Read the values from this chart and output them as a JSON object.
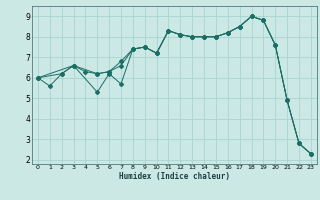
{
  "xlabel": "Humidex (Indice chaleur)",
  "bg_color": "#cce8e5",
  "grid_color": "#a8d4d0",
  "line_color": "#1a6e64",
  "xlim": [
    -0.5,
    23.5
  ],
  "ylim": [
    1.8,
    9.5
  ],
  "xticks": [
    0,
    1,
    2,
    3,
    4,
    5,
    6,
    7,
    8,
    9,
    10,
    11,
    12,
    13,
    14,
    15,
    16,
    17,
    18,
    19,
    20,
    21,
    22,
    23
  ],
  "yticks": [
    2,
    3,
    4,
    5,
    6,
    7,
    8,
    9
  ],
  "lines": [
    {
      "x": [
        0,
        1,
        2,
        3,
        4,
        5,
        6,
        7,
        8,
        9,
        10,
        11,
        12,
        13,
        14,
        15,
        16,
        17,
        18,
        19,
        20,
        21,
        22,
        23
      ],
      "y": [
        6.0,
        5.6,
        6.2,
        6.6,
        6.3,
        6.2,
        6.3,
        6.6,
        7.4,
        7.5,
        7.2,
        8.3,
        8.1,
        8.0,
        8.0,
        8.0,
        8.2,
        8.5,
        9.0,
        8.8,
        7.6,
        4.9,
        2.8,
        2.3
      ]
    },
    {
      "x": [
        0,
        2,
        3,
        5,
        6,
        7,
        8,
        9,
        10,
        11,
        12,
        13,
        14,
        15,
        16,
        17,
        18,
        19,
        20,
        21,
        22,
        23
      ],
      "y": [
        6.0,
        6.2,
        6.6,
        6.2,
        6.3,
        6.8,
        7.4,
        7.5,
        7.2,
        8.3,
        8.1,
        8.0,
        8.0,
        8.0,
        8.2,
        8.5,
        9.0,
        8.8,
        7.6,
        4.9,
        2.8,
        2.3
      ]
    },
    {
      "x": [
        0,
        3,
        5,
        6,
        7,
        8,
        9,
        10,
        11,
        12,
        13,
        14,
        15,
        16,
        17,
        18,
        19,
        20,
        21,
        22,
        23
      ],
      "y": [
        6.0,
        6.6,
        5.3,
        6.2,
        5.7,
        7.4,
        7.5,
        7.2,
        8.3,
        8.1,
        8.0,
        8.0,
        8.0,
        8.2,
        8.5,
        9.0,
        8.8,
        7.6,
        4.9,
        2.8,
        2.3
      ]
    }
  ]
}
